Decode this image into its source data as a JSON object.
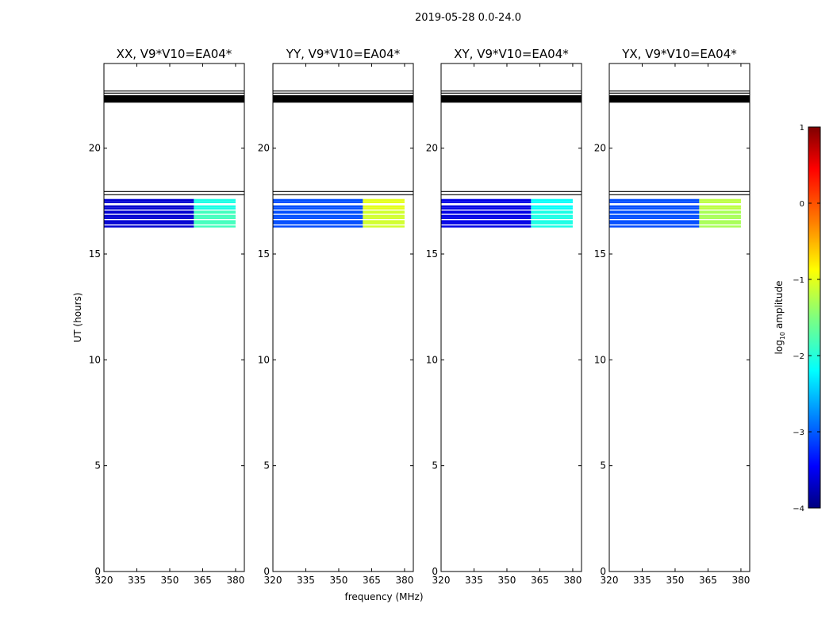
{
  "figure": {
    "suptitle": "2019-05-28 0.0-24.0",
    "xlabel": "frequency (MHz)",
    "ylabel": "UT (hours)"
  },
  "chart_data": {
    "type": "heatmap",
    "x_ticks": [
      320,
      335,
      350,
      365,
      380
    ],
    "y_ticks": [
      0,
      5,
      10,
      15,
      20
    ],
    "xlim": [
      320,
      384
    ],
    "ylim": [
      0,
      24
    ],
    "colorbar": {
      "label": "log10 amplitude",
      "label_base": "log",
      "label_sub": "10",
      "label_rest": " amplitude",
      "range": [
        -4,
        1
      ],
      "ticks": [
        "1",
        "0",
        "−1",
        "−2",
        "−3",
        "−4"
      ],
      "tick_values": [
        1,
        0,
        -1,
        -2,
        -3,
        -4
      ],
      "colormap": "jet"
    },
    "black_band_hours": [
      22.15,
      22.5
    ],
    "thin_lines_hours": [
      22.6,
      22.7,
      17.8,
      17.95
    ],
    "data_rows_hours": [
      16.3,
      16.45,
      16.55,
      16.7,
      16.8,
      16.95,
      17.0,
      17.15,
      17.25,
      17.45,
      17.55
    ],
    "low_freq_range_mhz": [
      320,
      361
    ],
    "high_freq_range_mhz": [
      361,
      380
    ],
    "panels": [
      {
        "title": "XX, V9*V10=EA04*",
        "low_value": -3.6,
        "high_value": -1.8,
        "upper_high_value": -2.0
      },
      {
        "title": "YY, V9*V10=EA04*",
        "low_value": -3.0,
        "high_value": -1.1,
        "upper_high_value": -1.0
      },
      {
        "title": "XY, V9*V10=EA04*",
        "low_value": -3.5,
        "high_value": -2.0,
        "upper_high_value": -2.1
      },
      {
        "title": "YX, V9*V10=EA04*",
        "low_value": -3.0,
        "high_value": -1.3,
        "upper_high_value": -1.2
      }
    ]
  }
}
